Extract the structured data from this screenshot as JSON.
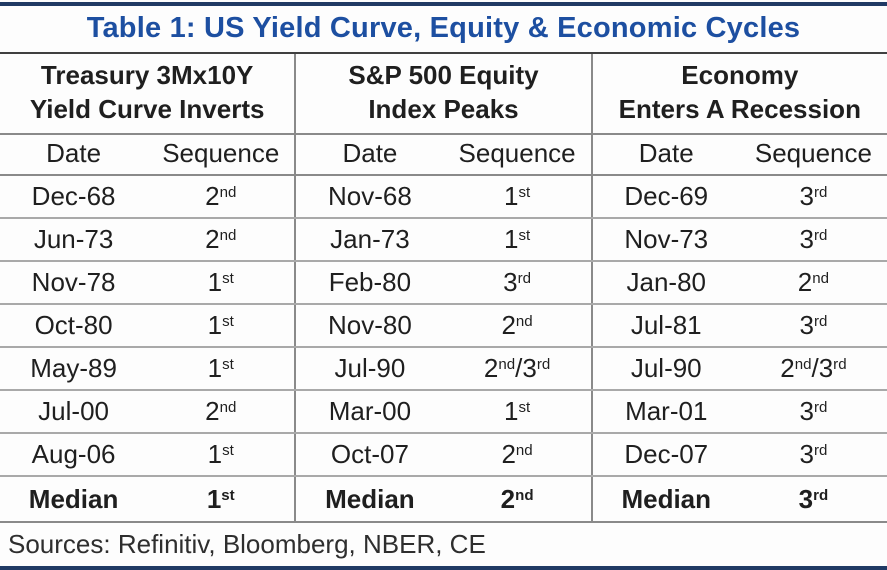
{
  "colors": {
    "title_blue": "#1d4fa1",
    "accent_navy": "#203a64",
    "text_black": "#1f1f1f",
    "grid_gray": "#8a8a8a",
    "row_line_gray": "#a9a9a9",
    "title_rule_dark": "#404040",
    "background": "#fdfdfd"
  },
  "chart_data": {
    "type": "table",
    "title": "Table 1: US Yield Curve, Equity & Economic Cycles",
    "column_groups": [
      {
        "title_line1": "Treasury 3Mx10Y",
        "title_line2": "Yield Curve Inverts",
        "columns": [
          "Date",
          "Sequence"
        ]
      },
      {
        "title_line1": "S&P 500 Equity",
        "title_line2": "Index Peaks",
        "columns": [
          "Date",
          "Sequence"
        ]
      },
      {
        "title_line1": "Economy",
        "title_line2": "Enters A Recession",
        "columns": [
          "Date",
          "Sequence"
        ]
      }
    ],
    "rows": [
      [
        "Dec-68",
        "2nd",
        "Nov-68",
        "1st",
        "Dec-69",
        "3rd"
      ],
      [
        "Jun-73",
        "2nd",
        "Jan-73",
        "1st",
        "Nov-73",
        "3rd"
      ],
      [
        "Nov-78",
        "1st",
        "Feb-80",
        "3rd",
        "Jan-80",
        "2nd"
      ],
      [
        "Oct-80",
        "1st",
        "Nov-80",
        "2nd",
        "Jul-81",
        "3rd"
      ],
      [
        "May-89",
        "1st",
        "Jul-90",
        "2nd/3rd",
        "Jul-90",
        "2nd/3rd"
      ],
      [
        "Jul-00",
        "2nd",
        "Mar-00",
        "1st",
        "Mar-01",
        "3rd"
      ],
      [
        "Aug-06",
        "1st",
        "Oct-07",
        "2nd",
        "Dec-07",
        "3rd"
      ]
    ],
    "median_row": [
      "Median",
      "1st",
      "Median",
      "2nd",
      "Median",
      "3rd"
    ],
    "footer": "Sources: Refinitiv, Bloomberg, NBER, CE"
  }
}
